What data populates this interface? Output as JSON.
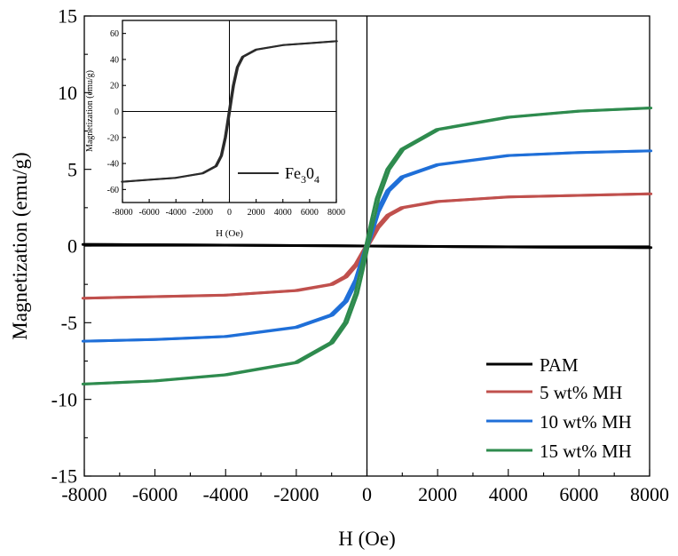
{
  "chart_data": [
    {
      "type": "line",
      "title": "",
      "xlabel": "H (Oe)",
      "ylabel": "Magnetization (emu/g)",
      "xlim": [
        -8000,
        8000
      ],
      "ylim": [
        -15,
        15
      ],
      "x_ticks": [
        "-8000",
        "-6000",
        "-4000",
        "-2000",
        "0",
        "2000",
        "4000",
        "6000",
        "8000"
      ],
      "y_ticks": [
        "-15",
        "-10",
        "-5",
        "0",
        "5",
        "10",
        "15"
      ],
      "legend_position": "bottom-right",
      "series": [
        {
          "name": "PAM",
          "color": "#000000",
          "x": [
            -8000,
            -6000,
            -4000,
            -2000,
            0,
            2000,
            4000,
            6000,
            8000
          ],
          "y": [
            0.1,
            0.08,
            0.06,
            0.03,
            0.0,
            -0.03,
            -0.06,
            -0.08,
            -0.1
          ]
        },
        {
          "name": "5 wt% MH",
          "color": "#c0504d",
          "x": [
            -8000,
            -6000,
            -4000,
            -2000,
            -1000,
            -600,
            -300,
            -150,
            0,
            150,
            300,
            600,
            1000,
            2000,
            4000,
            6000,
            8000
          ],
          "y": [
            -3.4,
            -3.3,
            -3.2,
            -2.9,
            -2.5,
            -2.0,
            -1.2,
            -0.6,
            0.0,
            0.6,
            1.2,
            2.0,
            2.5,
            2.9,
            3.2,
            3.3,
            3.4
          ]
        },
        {
          "name": "10 wt% MH",
          "color": "#1f6fd8",
          "x": [
            -8000,
            -6000,
            -4000,
            -2000,
            -1000,
            -600,
            -300,
            -150,
            0,
            150,
            300,
            600,
            1000,
            2000,
            4000,
            6000,
            8000
          ],
          "y": [
            -6.2,
            -6.1,
            -5.9,
            -5.3,
            -4.5,
            -3.6,
            -2.2,
            -1.1,
            0.0,
            1.1,
            2.2,
            3.6,
            4.5,
            5.3,
            5.9,
            6.1,
            6.2
          ]
        },
        {
          "name": "15 wt% MH",
          "color": "#2e8b4e",
          "x": [
            -8000,
            -6000,
            -4000,
            -2000,
            -1000,
            -600,
            -300,
            -150,
            0,
            150,
            300,
            600,
            1000,
            2000,
            4000,
            6000,
            8000
          ],
          "y": [
            -9.0,
            -8.8,
            -8.4,
            -7.6,
            -6.3,
            -5.0,
            -3.1,
            -1.6,
            0.0,
            1.6,
            3.1,
            5.0,
            6.3,
            7.6,
            8.4,
            8.8,
            9.0
          ]
        }
      ]
    },
    {
      "type": "line",
      "title": "",
      "xlabel": "H (Oe)",
      "ylabel": "Magnetization (emu/g)",
      "xlim": [
        -8000,
        8000
      ],
      "ylim": [
        -70,
        70
      ],
      "x_ticks": [
        "-8000",
        "-6000",
        "-4000",
        "-2000",
        "0",
        "2000",
        "4000",
        "6000",
        "8000"
      ],
      "y_ticks": [
        "-60",
        "-40",
        "-20",
        "0",
        "20",
        "40",
        "60"
      ],
      "legend_position": "bottom-right",
      "legend_label": "Fe",
      "legend_sub1": "3",
      "legend_mid": "0",
      "legend_sub2": "4",
      "series": [
        {
          "name": "Fe3O4",
          "color": "#2b2b2b",
          "x": [
            -8000,
            -6000,
            -4000,
            -2000,
            -1000,
            -600,
            -300,
            -150,
            0,
            150,
            300,
            600,
            1000,
            2000,
            4000,
            6000,
            8000
          ],
          "y": [
            -54.0,
            -52.5,
            -51.0,
            -47.5,
            -42.0,
            -34.0,
            -20.0,
            -10.0,
            0.0,
            10.0,
            20.0,
            34.0,
            42.0,
            47.5,
            51.0,
            52.5,
            54.0
          ]
        }
      ]
    }
  ]
}
